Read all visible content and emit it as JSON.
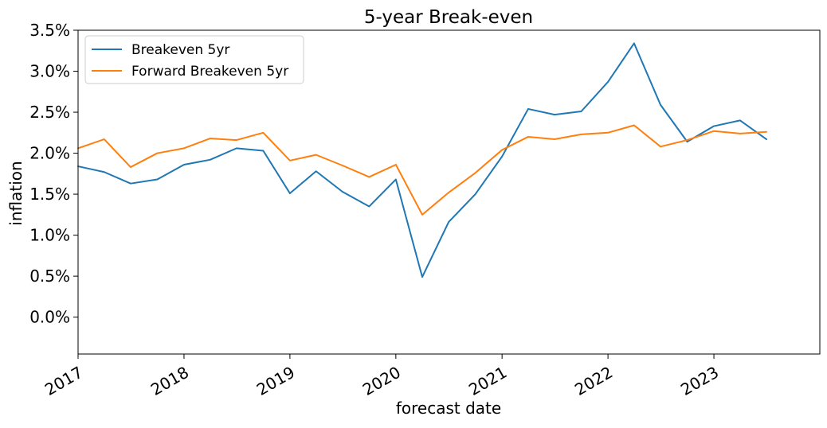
{
  "chart_data": {
    "type": "line",
    "title": "5-year Break-even",
    "xlabel": "forecast date",
    "ylabel": "inflation",
    "x": [
      "2017-01-01",
      "2017-04-01",
      "2017-07-01",
      "2017-10-01",
      "2018-01-01",
      "2018-04-01",
      "2018-07-01",
      "2018-10-01",
      "2019-01-01",
      "2019-04-01",
      "2019-07-01",
      "2019-10-01",
      "2020-01-01",
      "2020-04-01",
      "2020-07-01",
      "2020-10-01",
      "2021-01-01",
      "2021-04-01",
      "2021-07-01",
      "2021-10-01",
      "2022-01-01",
      "2022-04-01",
      "2022-07-01",
      "2022-10-01",
      "2023-01-01",
      "2023-04-01",
      "2023-07-01"
    ],
    "series": [
      {
        "name": "Breakeven 5yr",
        "color": "#1f77b4",
        "values": [
          1.84,
          1.77,
          1.63,
          1.68,
          1.86,
          1.92,
          2.06,
          2.03,
          1.51,
          1.78,
          1.53,
          1.35,
          1.68,
          0.49,
          1.16,
          1.5,
          1.96,
          2.54,
          2.47,
          2.51,
          2.87,
          3.34,
          2.59,
          2.14,
          2.33,
          2.4,
          2.17
        ]
      },
      {
        "name": "Forward Breakeven 5yr",
        "color": "#ff7f0e",
        "values": [
          2.06,
          2.17,
          1.83,
          2.0,
          2.06,
          2.18,
          2.16,
          2.25,
          1.91,
          1.98,
          1.85,
          1.71,
          1.86,
          1.25,
          1.52,
          1.76,
          2.04,
          2.2,
          2.17,
          2.23,
          2.25,
          2.34,
          2.08,
          2.16,
          2.27,
          2.24,
          2.26
        ]
      }
    ],
    "xlim": [
      "2017-01-01",
      "2024-01-01"
    ],
    "ylim": [
      -0.45,
      3.5
    ],
    "x_ticks": [
      {
        "date": "2017-01-01",
        "label": "2017"
      },
      {
        "date": "2018-01-01",
        "label": "2018"
      },
      {
        "date": "2019-01-01",
        "label": "2019"
      },
      {
        "date": "2020-01-01",
        "label": "2020"
      },
      {
        "date": "2021-01-01",
        "label": "2021"
      },
      {
        "date": "2022-01-01",
        "label": "2022"
      },
      {
        "date": "2023-01-01",
        "label": "2023"
      }
    ],
    "y_ticks": [
      {
        "value": 0.0,
        "label": "0.0%"
      },
      {
        "value": 0.5,
        "label": "0.5%"
      },
      {
        "value": 1.0,
        "label": "1.0%"
      },
      {
        "value": 1.5,
        "label": "1.5%"
      },
      {
        "value": 2.0,
        "label": "2.0%"
      },
      {
        "value": 2.5,
        "label": "2.5%"
      },
      {
        "value": 3.0,
        "label": "3.0%"
      },
      {
        "value": 3.5,
        "label": "3.5%"
      }
    ],
    "grid": false,
    "legend_position": "top-left"
  }
}
